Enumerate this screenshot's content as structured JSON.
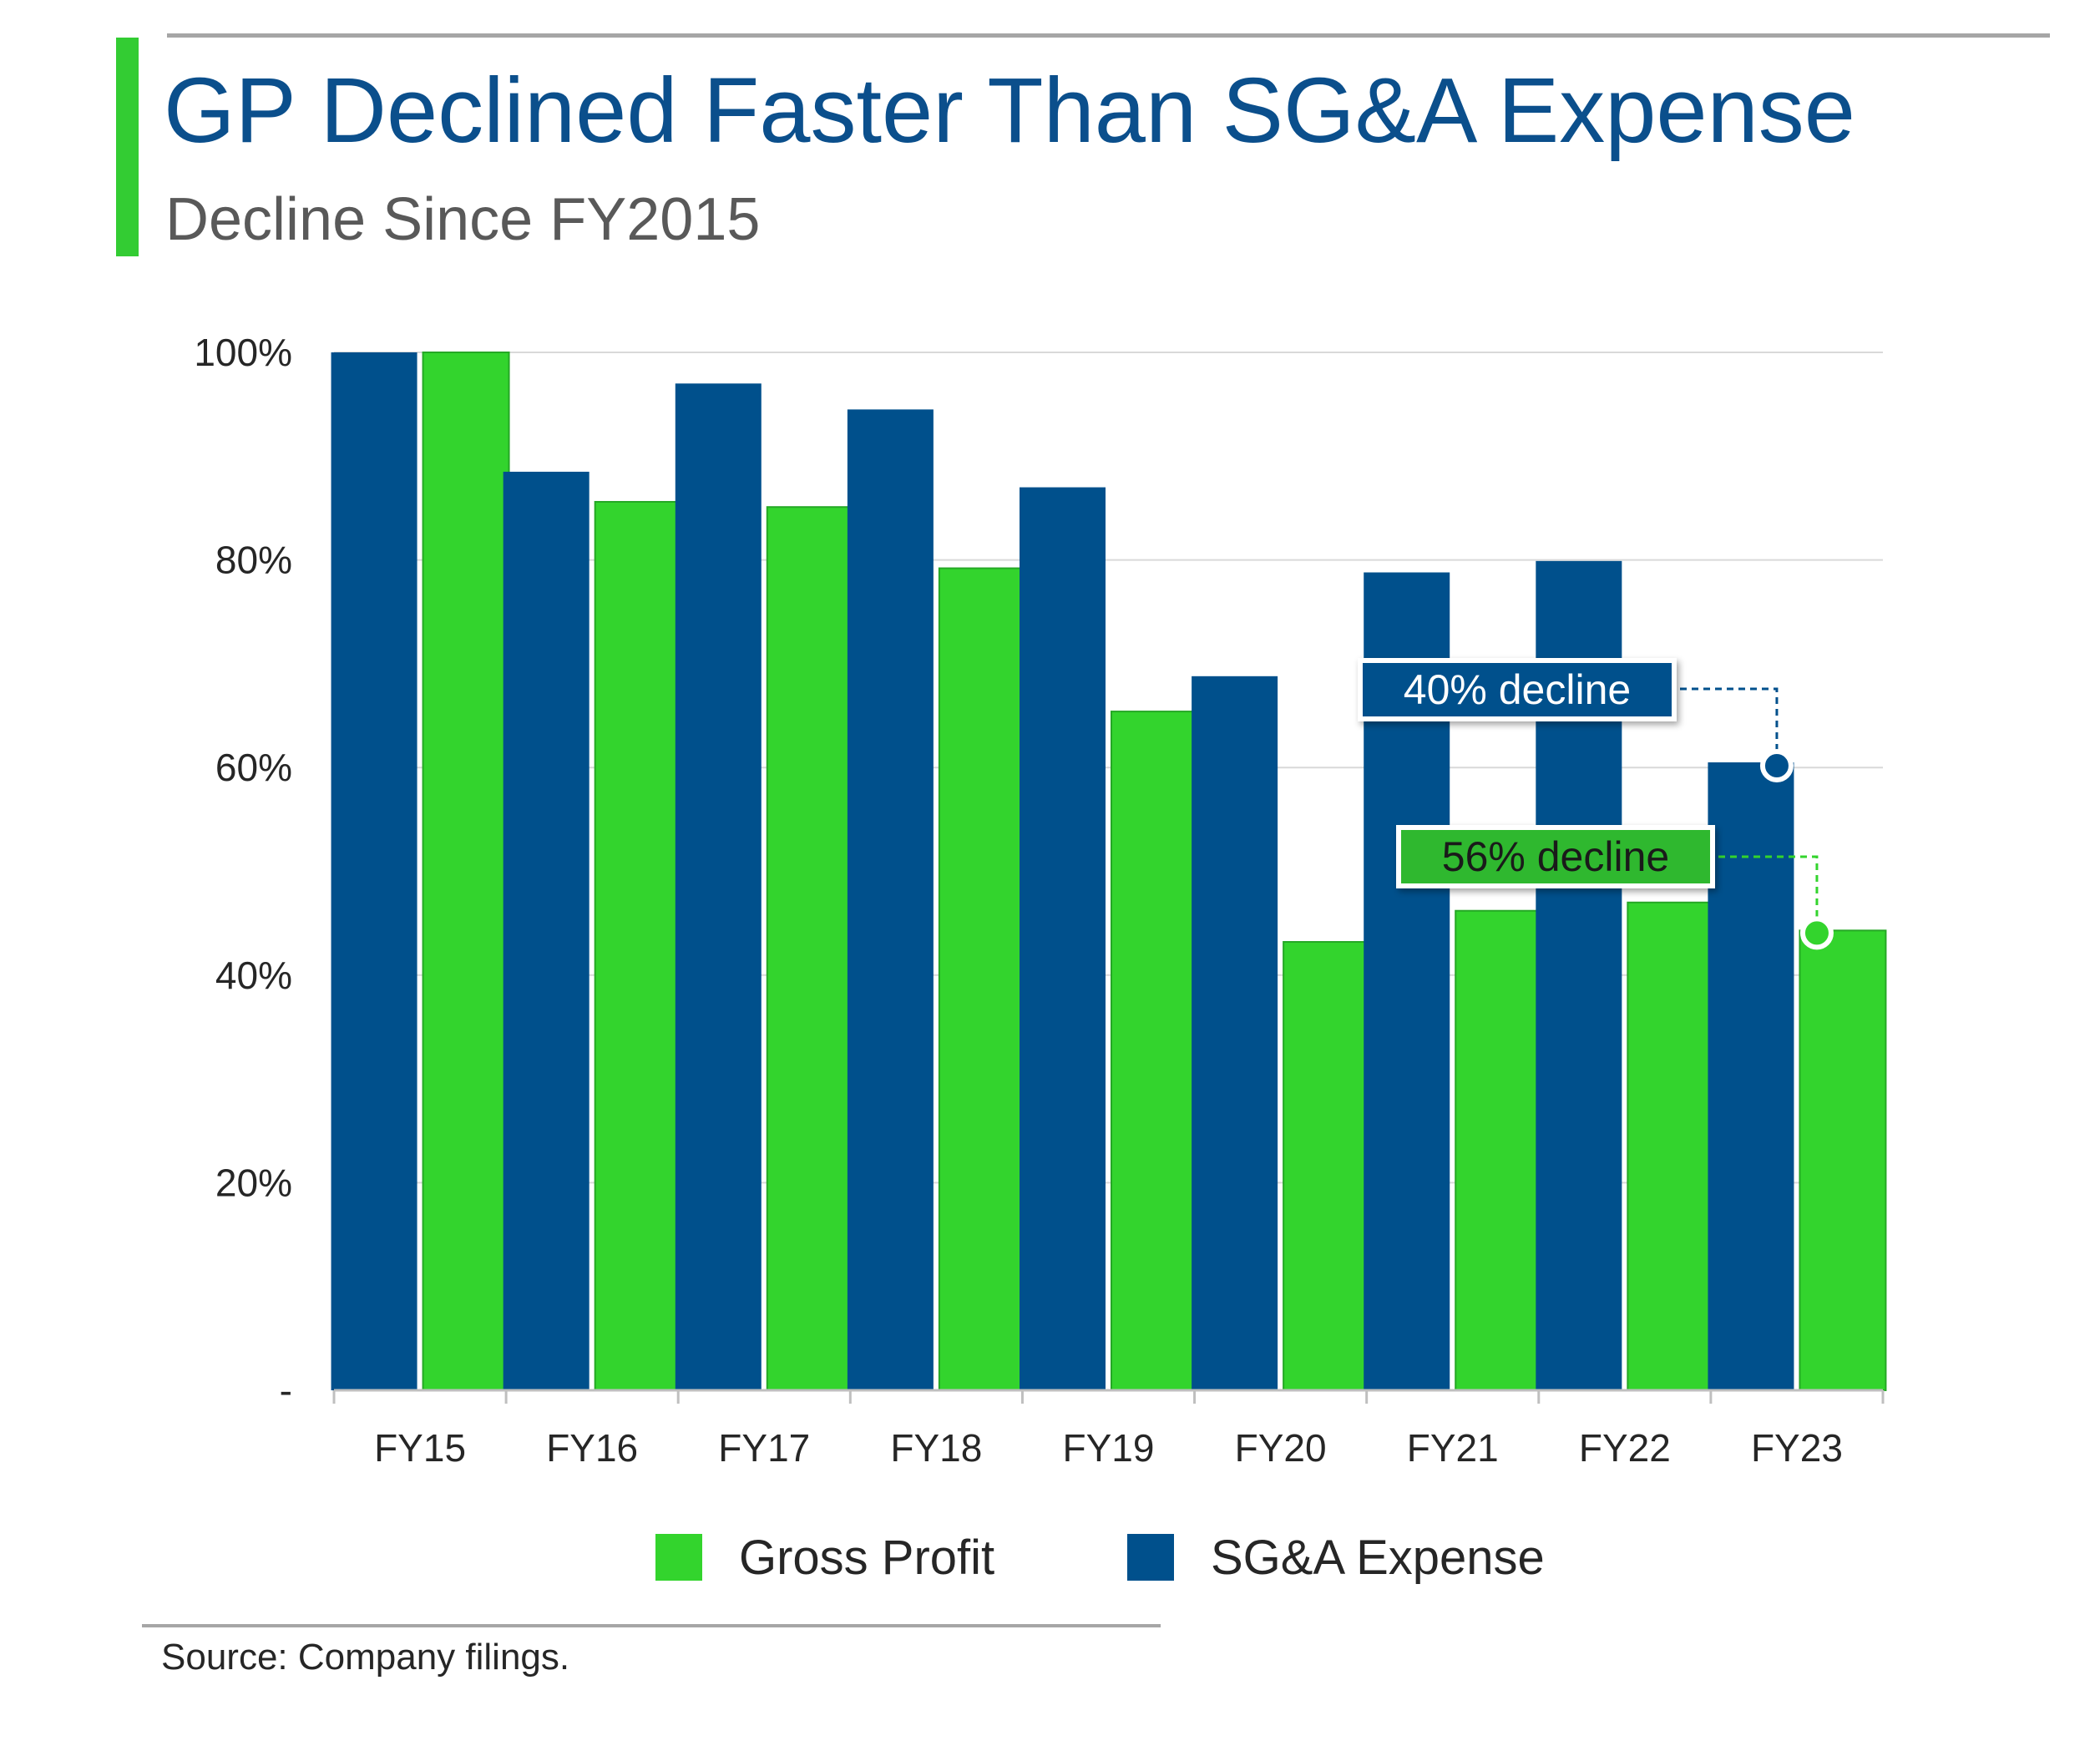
{
  "header": {
    "title": "GP Declined Faster Than SG&A Expense",
    "subtitle": "Decline Since FY2015"
  },
  "colors": {
    "accent_green": "#33cc33",
    "title_blue": "#0b4f8c",
    "sga_blue": "#00508c",
    "gp_green": "#33d42d",
    "gridline": "#d9d9d9"
  },
  "chart_data": {
    "type": "bar",
    "title": "GP Declined Faster Than SG&A Expense",
    "subtitle": "Decline Since FY2015",
    "categories": [
      "FY15",
      "FY16",
      "FY17",
      "FY18",
      "FY19",
      "FY20",
      "FY21",
      "FY22",
      "FY23"
    ],
    "series": [
      {
        "name": "SG&A Expense",
        "color": "#00508c",
        "values": [
          100,
          88.5,
          97,
          94.5,
          87,
          68.8,
          78.8,
          79.9,
          60.5
        ]
      },
      {
        "name": "Gross Profit",
        "color": "#33d42d",
        "values": [
          100,
          85.6,
          85.1,
          79.2,
          65.4,
          43.2,
          46.2,
          47.0,
          44.3
        ]
      }
    ],
    "ylim": [
      0,
      100
    ],
    "yticks": [
      0,
      20,
      40,
      60,
      80,
      100
    ],
    "ytick_labels": [
      "-",
      "20%",
      "40%",
      "60%",
      "80%",
      "100%"
    ],
    "grid": true,
    "legend_position": "bottom",
    "annotations": [
      {
        "text": "40% decline",
        "series": "SG&A Expense",
        "category": "FY23",
        "value": 60.5,
        "color": "#00508c"
      },
      {
        "text": "56% decline",
        "series": "Gross Profit",
        "category": "FY23",
        "value": 44.3,
        "color": "#33d42d"
      }
    ]
  },
  "legend": [
    {
      "label": "Gross Profit",
      "color": "#33d42d"
    },
    {
      "label": "SG&A Expense",
      "color": "#00508c"
    }
  ],
  "footer": {
    "source": "Source: Company filings."
  }
}
